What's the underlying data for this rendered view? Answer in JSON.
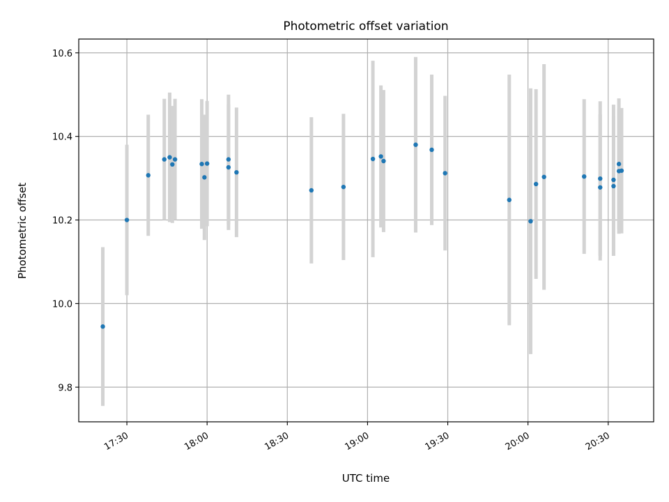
{
  "chart_data": {
    "type": "scatter",
    "title": "Photometric offset variation",
    "xlabel": "UTC time",
    "ylabel": "Photometric offset",
    "x_ticks": [
      "17:30",
      "18:00",
      "18:30",
      "19:00",
      "19:30",
      "20:00",
      "20:30"
    ],
    "y_ticks": [
      "9.8",
      "10.0",
      "10.2",
      "10.4",
      "10.6"
    ],
    "xlim": [
      "17:12",
      "20:47"
    ],
    "ylim": [
      9.717,
      10.633
    ],
    "grid": true,
    "colors": {
      "points": "#1f77b4",
      "errorbars": "#d3d3d3",
      "grid": "#b0b0b0"
    },
    "series": [
      {
        "points": [
          {
            "x": "17:21",
            "y": 9.945,
            "err": 0.19
          },
          {
            "x": "17:30",
            "y": 10.2,
            "err": 0.18
          },
          {
            "x": "17:38",
            "y": 10.307,
            "err": 0.145
          },
          {
            "x": "17:44",
            "y": 10.345,
            "err": 0.145
          },
          {
            "x": "17:46",
            "y": 10.35,
            "err": 0.155
          },
          {
            "x": "17:47",
            "y": 10.333,
            "err": 0.14
          },
          {
            "x": "17:48",
            "y": 10.345,
            "err": 0.145
          },
          {
            "x": "17:58",
            "y": 10.334,
            "err": 0.155
          },
          {
            "x": "17:59",
            "y": 10.302,
            "err": 0.15
          },
          {
            "x": "17:60",
            "y": 10.335,
            "err": 0.15
          },
          {
            "x": "18:08",
            "y": 10.326,
            "err": 0.15
          },
          {
            "x": "18:08",
            "y": 10.345,
            "err": 0.155
          },
          {
            "x": "18:11",
            "y": 10.314,
            "err": 0.155
          },
          {
            "x": "18:39",
            "y": 10.271,
            "err": 0.175
          },
          {
            "x": "18:51",
            "y": 10.279,
            "err": 0.175
          },
          {
            "x": "19:02",
            "y": 10.346,
            "err": 0.235
          },
          {
            "x": "19:05",
            "y": 10.352,
            "err": 0.17
          },
          {
            "x": "19:06",
            "y": 10.341,
            "err": 0.17
          },
          {
            "x": "19:18",
            "y": 10.38,
            "err": 0.21
          },
          {
            "x": "19:24",
            "y": 10.368,
            "err": 0.18
          },
          {
            "x": "19:29",
            "y": 10.312,
            "err": 0.185
          },
          {
            "x": "19:53",
            "y": 10.248,
            "err": 0.3
          },
          {
            "x": "20:01",
            "y": 10.197,
            "err": 0.318
          },
          {
            "x": "20:03",
            "y": 10.286,
            "err": 0.227
          },
          {
            "x": "20:06",
            "y": 10.303,
            "err": 0.27
          },
          {
            "x": "20:21",
            "y": 10.304,
            "err": 0.185
          },
          {
            "x": "20:27",
            "y": 10.278,
            "err": 0.175
          },
          {
            "x": "20:27",
            "y": 10.299,
            "err": 0.185
          },
          {
            "x": "20:32",
            "y": 10.296,
            "err": 0.18
          },
          {
            "x": "20:32",
            "y": 10.281,
            "err": 0.167
          },
          {
            "x": "20:34",
            "y": 10.334,
            "err": 0.157
          },
          {
            "x": "20:34",
            "y": 10.317,
            "err": 0.15
          },
          {
            "x": "20:35",
            "y": 10.318,
            "err": 0.15
          }
        ]
      }
    ]
  }
}
